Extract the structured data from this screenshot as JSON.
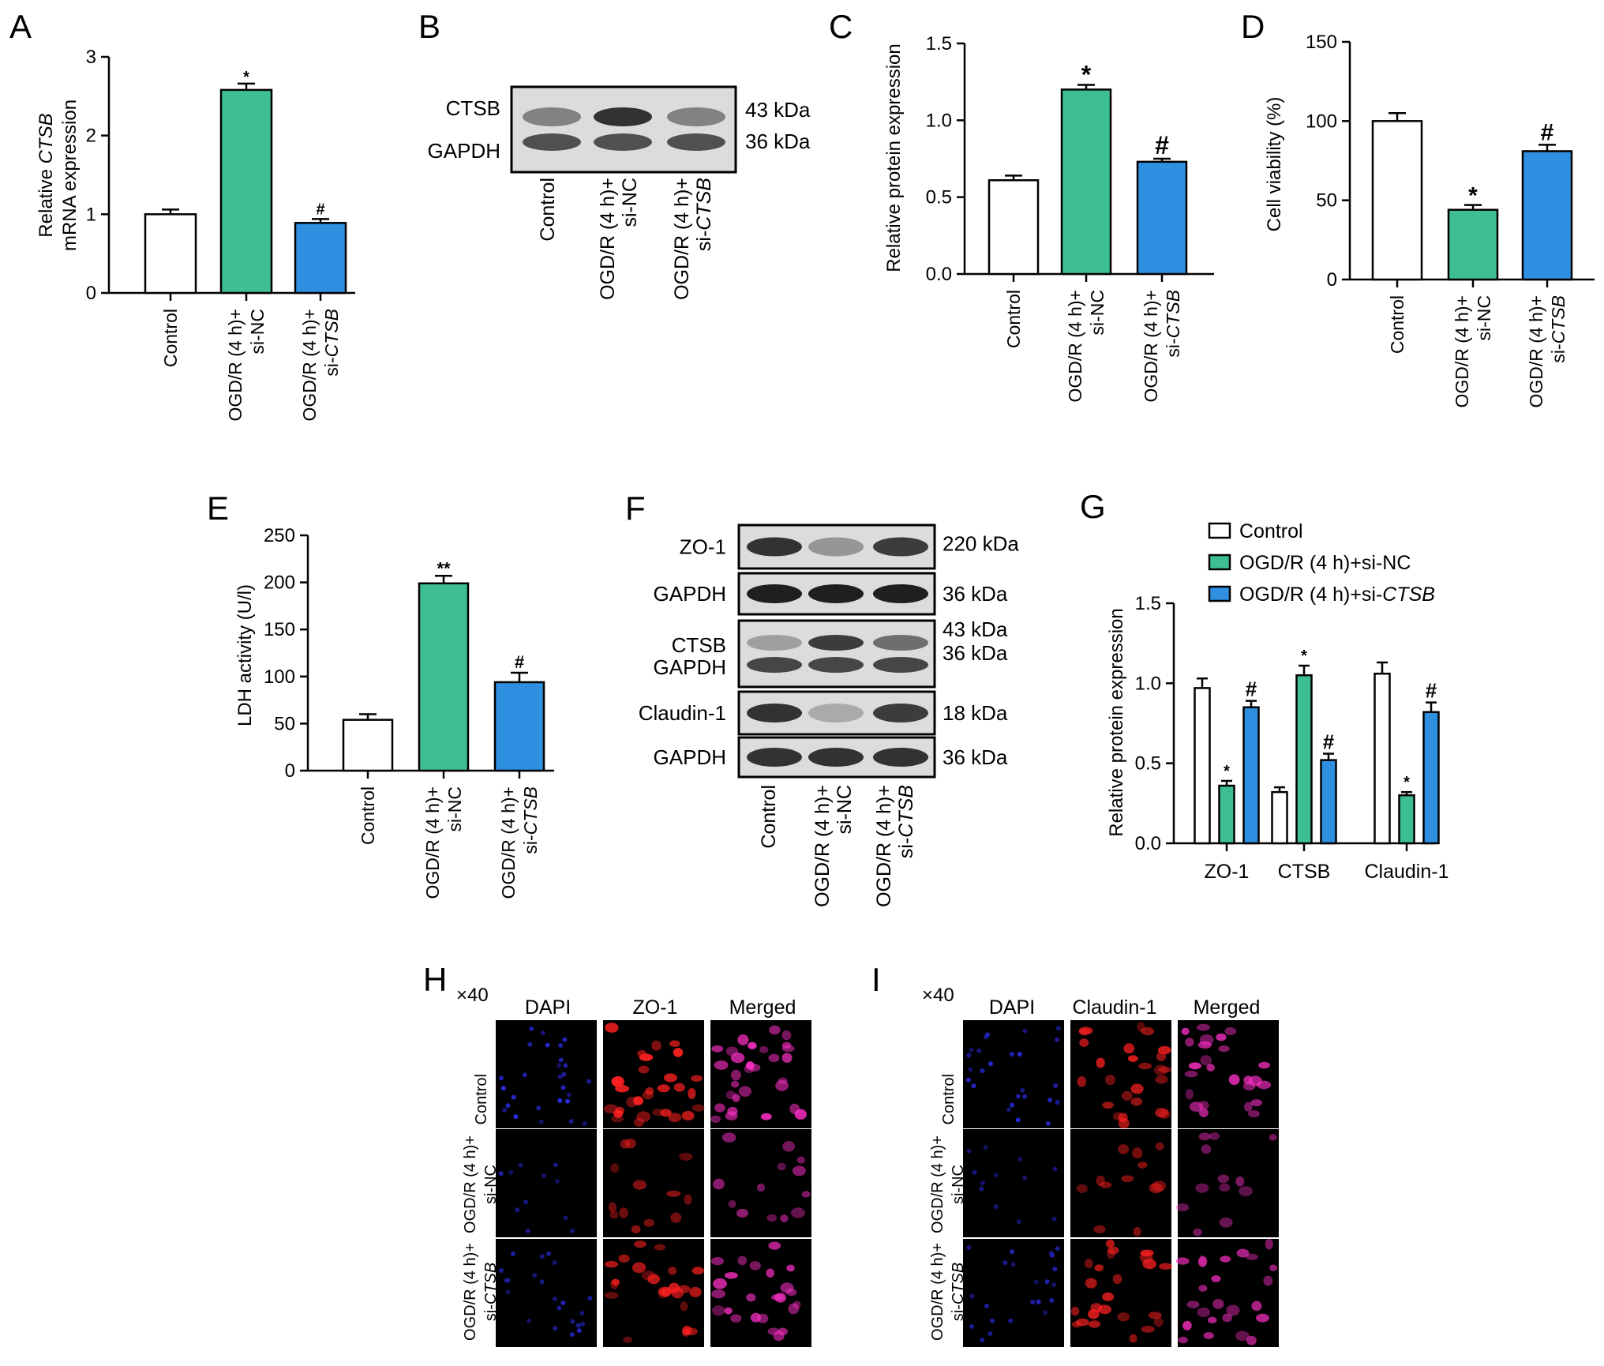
{
  "colors": {
    "control": "#ffffff",
    "sinc": "#3dbf93",
    "sictsb": "#2f8fe0",
    "dapi": "#3030ff",
    "red": "#ff2020",
    "merged": "#ff30c8"
  },
  "groups": {
    "control": "Control",
    "sinc": [
      "OGD/R (4 h)+",
      "si-NC"
    ],
    "sictsb": [
      "OGD/R (4 h)+",
      "si-",
      "CTSB"
    ]
  },
  "panel_letters": [
    "A",
    "B",
    "C",
    "D",
    "E",
    "F",
    "G",
    "H",
    "I"
  ],
  "blot_b": {
    "rows": [
      "CTSB",
      "GAPDH"
    ],
    "sizes": [
      "43 kDa",
      "36 kDa"
    ],
    "intensity": {
      "CTSB": [
        0.45,
        0.85,
        0.45
      ],
      "GAPDH": [
        0.7,
        0.7,
        0.7
      ]
    }
  },
  "blot_f": {
    "boxes": [
      {
        "labels": [
          "ZO-1"
        ],
        "sizes": [
          "220 kDa"
        ],
        "intensity": [
          [
            0.85,
            0.35,
            0.8
          ]
        ]
      },
      {
        "labels": [
          "GAPDH"
        ],
        "sizes": [
          "36 kDa"
        ],
        "intensity": [
          [
            0.95,
            0.95,
            0.95
          ]
        ]
      },
      {
        "labels": [
          "CTSB",
          "GAPDH"
        ],
        "sizes": [
          "43 kDa",
          "36 kDa"
        ],
        "intensity": [
          [
            0.3,
            0.8,
            0.55
          ],
          [
            0.75,
            0.75,
            0.75
          ]
        ]
      },
      {
        "labels": [
          "Claudin-1"
        ],
        "sizes": [
          "18 kDa"
        ],
        "intensity": [
          [
            0.85,
            0.25,
            0.8
          ]
        ]
      },
      {
        "labels": [
          "GAPDH"
        ],
        "sizes": [
          "36 kDa"
        ],
        "intensity": [
          [
            0.85,
            0.85,
            0.85
          ]
        ]
      }
    ]
  },
  "chart_data": [
    {
      "panel": "A",
      "type": "bar",
      "categories": [
        "Control",
        "OGD/R (4 h)+si-NC",
        "OGD/R (4 h)+si-CTSB"
      ],
      "values": [
        1.0,
        2.58,
        0.89
      ],
      "errors": [
        0.06,
        0.08,
        0.05
      ],
      "annotations": [
        "",
        "*",
        "#"
      ],
      "ylabel": [
        "Relative ",
        "CTSB",
        " mRNA expression"
      ],
      "ylim": [
        0,
        3
      ],
      "yticks": [
        "0",
        "1",
        "2",
        "3"
      ]
    },
    {
      "panel": "C",
      "type": "bar",
      "categories": [
        "Control",
        "OGD/R (4 h)+si-NC",
        "OGD/R (4 h)+si-CTSB"
      ],
      "values": [
        0.61,
        1.2,
        0.73
      ],
      "errors": [
        0.03,
        0.03,
        0.02
      ],
      "annotations": [
        "",
        "*",
        "#"
      ],
      "ylabel": "Relative protein expression",
      "ylim": [
        0,
        1.5
      ],
      "yticks": [
        "0.0",
        "0.5",
        "1.0",
        "1.5"
      ]
    },
    {
      "panel": "D",
      "type": "bar",
      "categories": [
        "Control",
        "OGD/R (4 h)+si-NC",
        "OGD/R (4 h)+si-CTSB"
      ],
      "values": [
        100,
        44,
        81
      ],
      "errors": [
        5,
        3,
        4
      ],
      "annotations": [
        "",
        "*",
        "#"
      ],
      "ylabel": "Cell viability (%)",
      "ylim": [
        0,
        150
      ],
      "yticks": [
        "0",
        "50",
        "100",
        "150"
      ]
    },
    {
      "panel": "E",
      "type": "bar",
      "categories": [
        "Control",
        "OGD/R (4 h)+si-NC",
        "OGD/R (4 h)+si-CTSB"
      ],
      "values": [
        54,
        199,
        94
      ],
      "errors": [
        6,
        8,
        10
      ],
      "annotations": [
        "",
        "**",
        "#"
      ],
      "ylabel": "LDH activity (U/l)",
      "ylim": [
        0,
        250
      ],
      "yticks": [
        "0",
        "50",
        "100",
        "150",
        "200",
        "250"
      ]
    },
    {
      "panel": "G",
      "type": "bar",
      "categories": [
        "ZO-1",
        "CTSB",
        "Claudin-1"
      ],
      "series": [
        {
          "name": "Control",
          "values": [
            0.97,
            0.32,
            1.06
          ],
          "errors": [
            0.06,
            0.03,
            0.07
          ]
        },
        {
          "name": "OGD/R (4 h)+si-NC",
          "values": [
            0.36,
            1.05,
            0.3
          ],
          "errors": [
            0.03,
            0.06,
            0.02
          ]
        },
        {
          "name": "OGD/R (4 h)+si-CTSB",
          "values": [
            0.85,
            0.52,
            0.82
          ],
          "errors": [
            0.04,
            0.04,
            0.06
          ]
        }
      ],
      "annotations": [
        [
          "",
          "*",
          "#"
        ],
        [
          "",
          "*",
          "#"
        ],
        [
          "",
          "*",
          "#"
        ]
      ],
      "legend": [
        "Control",
        "OGD/R (4 h)+si-NC",
        [
          "OGD/R (4 h)+si-",
          "CTSB"
        ]
      ],
      "legend_position": "top",
      "ylabel": "Relative protein expression",
      "ylim": [
        0,
        1.5
      ],
      "yticks": [
        "0.0",
        "0.5",
        "1.0",
        "1.5"
      ]
    }
  ],
  "micro_h": {
    "mag": "×40",
    "columns": [
      "DAPI",
      "ZO-1",
      "Merged"
    ],
    "density": [
      [
        0.9,
        1.0,
        1.0
      ],
      [
        0.3,
        0.35,
        0.35
      ],
      [
        0.7,
        0.75,
        0.75
      ]
    ]
  },
  "micro_i": {
    "mag": "×40",
    "columns": [
      "DAPI",
      "Claudin-1",
      "Merged"
    ],
    "density": [
      [
        0.8,
        0.8,
        0.8
      ],
      [
        0.3,
        0.3,
        0.3
      ],
      [
        0.7,
        0.75,
        0.75
      ]
    ]
  }
}
